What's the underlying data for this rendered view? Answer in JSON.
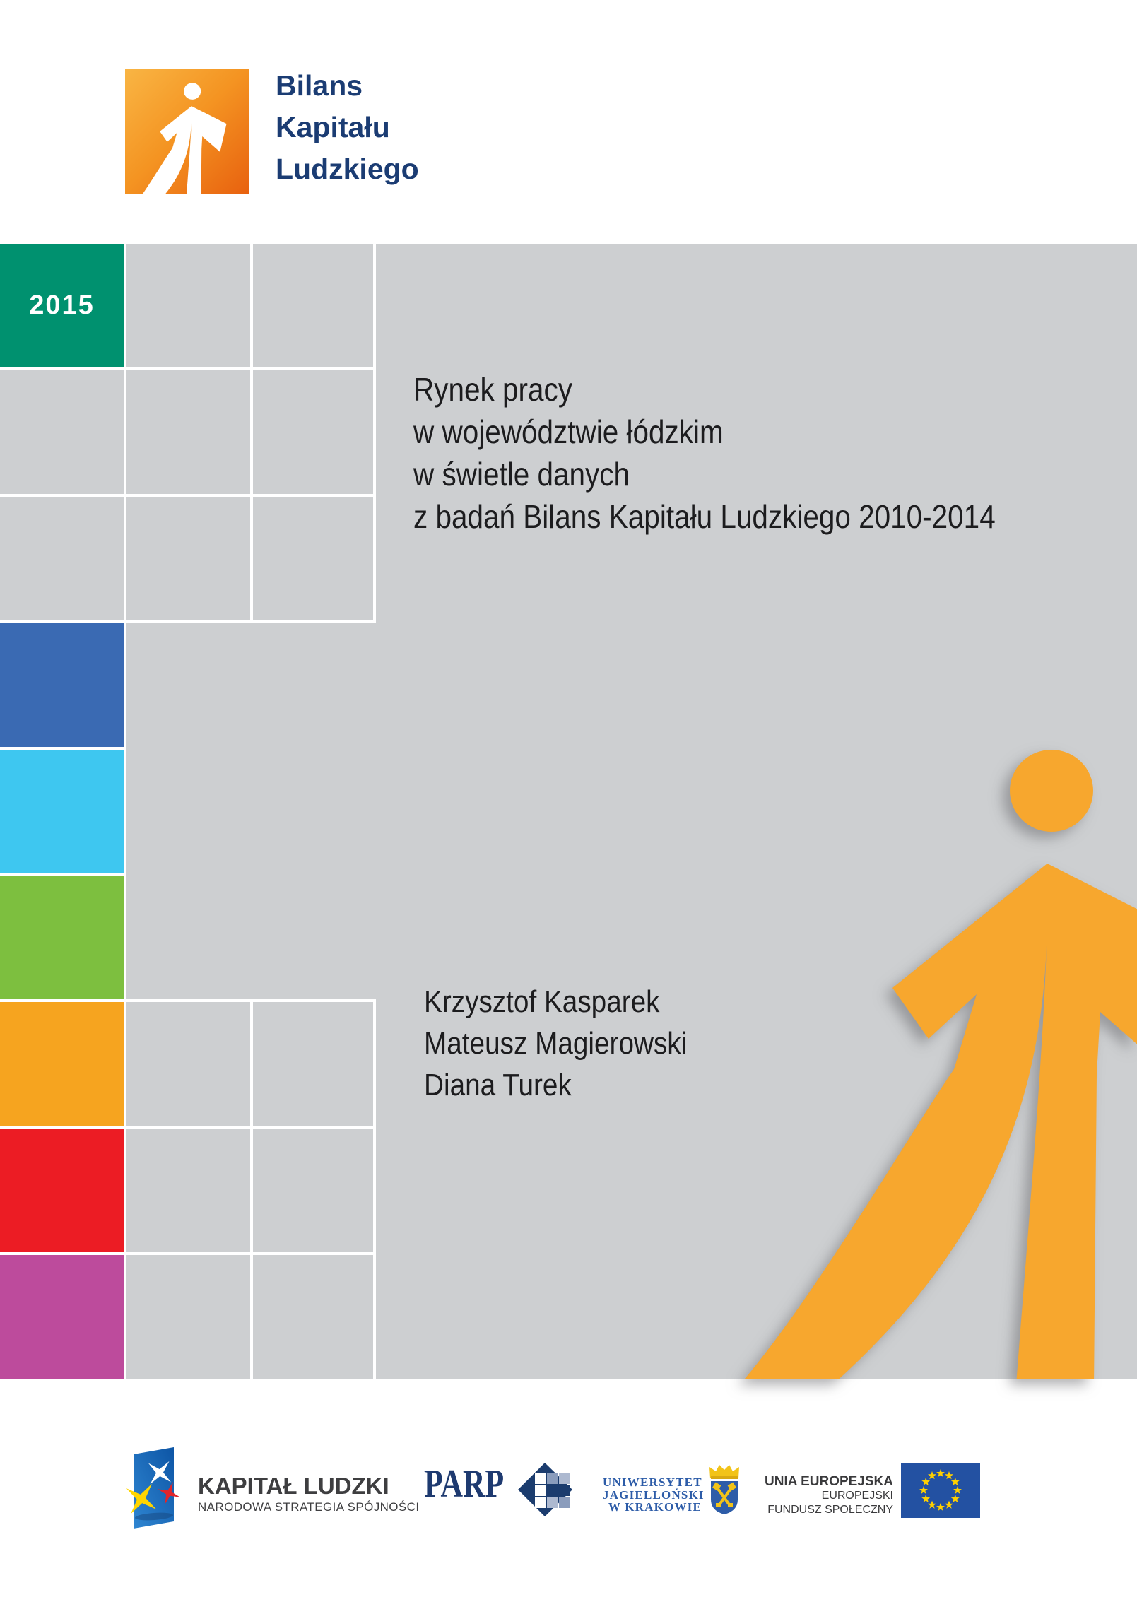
{
  "brand": {
    "name_lines": [
      "Bilans",
      "Kapitału",
      "Ludzkiego"
    ]
  },
  "title": {
    "lines": [
      "Rynek pracy",
      "w województwie łódzkim",
      "w świetle danych",
      "z badań Bilans Kapitału Ludzkiego 2010-2014"
    ]
  },
  "authors": {
    "names": [
      "Krzysztof Kasparek",
      "Mateusz Magierowski",
      "Diana Turek"
    ]
  },
  "grid": {
    "year_label": "2015",
    "rows": 9,
    "columns": 3,
    "cells": [
      [
        "teal",
        "gray",
        "gray"
      ],
      [
        "gray",
        "gray",
        "gray"
      ],
      [
        "gray",
        "gray",
        "gray"
      ],
      [
        "blue",
        "merge",
        "merge"
      ],
      [
        "cyan",
        "merge",
        "merge"
      ],
      [
        "lime",
        "merge",
        "merge"
      ],
      [
        "orange",
        "gray",
        "gray"
      ],
      [
        "red",
        "gray",
        "gray"
      ],
      [
        "magenta",
        "gray",
        "gray"
      ]
    ],
    "colors": {
      "teal": "#00916f",
      "gray": "#cdcfd1",
      "blue": "#3a6ab3",
      "cyan": "#3ec7f0",
      "lime": "#7dbf3f",
      "orange": "#f6a41f",
      "red": "#ec1c24",
      "magenta": "#bd4b9c"
    }
  },
  "footer": {
    "kapital_ludzki": {
      "title": "KAPITAŁ LUDZKI",
      "subtitle": "NARODOWA STRATEGIA SPÓJNOŚCI",
      "flag_gradient": [
        "#2f86d2",
        "#0d55a5"
      ],
      "star_colors": [
        "#ffffff",
        "#e0252b",
        "#ffd500"
      ]
    },
    "parp": {
      "label": "PARP",
      "navy": "#1e3a70"
    },
    "uj": {
      "lines": [
        "UNIWERSYTET",
        "JAGIELLOŃSKI",
        "W KRAKOWIE"
      ],
      "blue": "#2d5ca8",
      "gold": "#f2c318"
    },
    "eu": {
      "lines": [
        "UNIA EUROPEJSKA",
        "EUROPEJSKI",
        "FUNDUSZ SPOŁECZNY"
      ],
      "flag_color": "#2351a2",
      "star_color": "#ffd000",
      "star_count": 12
    }
  },
  "palette": {
    "figure_orange": "#f7a72e",
    "brand_navy": "#1b3c73",
    "logo_gradient": [
      "#f9b544",
      "#e8610f"
    ],
    "panel_gray": "#cdcfd1",
    "text_black": "#1c1c1e",
    "year_green": "#00916f"
  }
}
